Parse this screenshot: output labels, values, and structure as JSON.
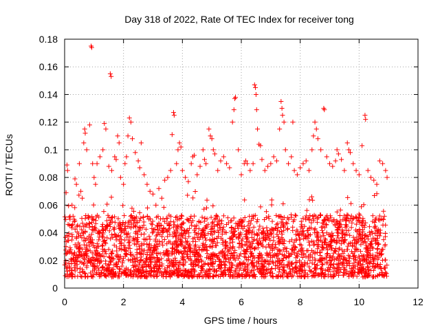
{
  "chart_data": {
    "type": "scatter",
    "title": "Day 318 of 2022, Rate Of TEC Index for receiver tong",
    "xlabel": "GPS time / hours",
    "ylabel": "ROTI / TECUs",
    "xlim": [
      0,
      12
    ],
    "ylim": [
      0,
      0.18
    ],
    "xticks": [
      0,
      2,
      4,
      6,
      8,
      10,
      12
    ],
    "xtick_labels": [
      "0",
      "2",
      "4",
      "6",
      "8",
      "10",
      "12"
    ],
    "yticks": [
      0,
      0.02,
      0.04,
      0.06,
      0.08,
      0.1,
      0.12,
      0.14,
      0.16,
      0.18
    ],
    "ytick_labels": [
      "0",
      "0.02",
      "0.04",
      "0.06",
      "0.08",
      "0.1",
      "0.12",
      "0.14",
      "0.16",
      "0.18"
    ],
    "grid": true,
    "marker": "+",
    "marker_color": "#ff0000",
    "series": [
      {
        "name": "ROTI",
        "points": [
          [
            0.05,
            0.069
          ],
          [
            0.08,
            0.089
          ],
          [
            0.1,
            0.085
          ],
          [
            0.25,
            0.06
          ],
          [
            0.35,
            0.079
          ],
          [
            0.4,
            0.075
          ],
          [
            0.5,
            0.09
          ],
          [
            0.55,
            0.07
          ],
          [
            0.6,
            0.065
          ],
          [
            0.65,
            0.105
          ],
          [
            0.68,
            0.115
          ],
          [
            0.7,
            0.112
          ],
          [
            0.75,
            0.1
          ],
          [
            0.85,
            0.118
          ],
          [
            0.9,
            0.175
          ],
          [
            0.92,
            0.174
          ],
          [
            0.95,
            0.09
          ],
          [
            1.0,
            0.08
          ],
          [
            1.05,
            0.075
          ],
          [
            1.1,
            0.09
          ],
          [
            1.2,
            0.095
          ],
          [
            1.3,
            0.1
          ],
          [
            1.35,
            0.119
          ],
          [
            1.4,
            0.115
          ],
          [
            1.5,
            0.088
          ],
          [
            1.55,
            0.155
          ],
          [
            1.58,
            0.153
          ],
          [
            1.6,
            0.085
          ],
          [
            1.7,
            0.095
          ],
          [
            1.75,
            0.093
          ],
          [
            1.8,
            0.11
          ],
          [
            1.85,
            0.105
          ],
          [
            1.9,
            0.08
          ],
          [
            2.0,
            0.075
          ],
          [
            2.05,
            0.09
          ],
          [
            2.1,
            0.095
          ],
          [
            2.15,
            0.11
          ],
          [
            2.2,
            0.123
          ],
          [
            2.25,
            0.12
          ],
          [
            2.3,
            0.108
          ],
          [
            2.4,
            0.098
          ],
          [
            2.5,
            0.092
          ],
          [
            2.55,
            0.087
          ],
          [
            2.6,
            0.105
          ],
          [
            2.7,
            0.082
          ],
          [
            2.8,
            0.075
          ],
          [
            2.9,
            0.07
          ],
          [
            3.0,
            0.068
          ],
          [
            3.1,
            0.06
          ],
          [
            3.2,
            0.072
          ],
          [
            3.3,
            0.065
          ],
          [
            3.4,
            0.078
          ],
          [
            3.5,
            0.08
          ],
          [
            3.6,
            0.085
          ],
          [
            3.65,
            0.111
          ],
          [
            3.7,
            0.127
          ],
          [
            3.72,
            0.125
          ],
          [
            3.8,
            0.09
          ],
          [
            3.85,
            0.1
          ],
          [
            3.9,
            0.105
          ],
          [
            3.95,
            0.102
          ],
          [
            4.0,
            0.085
          ],
          [
            4.1,
            0.08
          ],
          [
            4.2,
            0.077
          ],
          [
            4.3,
            0.09
          ],
          [
            4.35,
            0.095
          ],
          [
            4.4,
            0.096
          ],
          [
            4.5,
            0.082
          ],
          [
            4.6,
            0.088
          ],
          [
            4.7,
            0.1
          ],
          [
            4.75,
            0.093
          ],
          [
            4.8,
            0.09
          ],
          [
            4.9,
            0.115
          ],
          [
            4.95,
            0.11
          ],
          [
            5.0,
            0.108
          ],
          [
            5.05,
            0.1
          ],
          [
            5.1,
            0.097
          ],
          [
            5.2,
            0.085
          ],
          [
            5.3,
            0.092
          ],
          [
            5.4,
            0.095
          ],
          [
            5.5,
            0.09
          ],
          [
            5.6,
            0.087
          ],
          [
            5.7,
            0.12
          ],
          [
            5.75,
            0.129
          ],
          [
            5.78,
            0.137
          ],
          [
            5.8,
            0.138
          ],
          [
            5.9,
            0.1
          ],
          [
            6.0,
            0.082
          ],
          [
            6.1,
            0.09
          ],
          [
            6.15,
            0.092
          ],
          [
            6.2,
            0.09
          ],
          [
            6.3,
            0.085
          ],
          [
            6.4,
            0.09
          ],
          [
            6.45,
            0.147
          ],
          [
            6.48,
            0.145
          ],
          [
            6.5,
            0.14
          ],
          [
            6.52,
            0.129
          ],
          [
            6.55,
            0.115
          ],
          [
            6.6,
            0.104
          ],
          [
            6.65,
            0.103
          ],
          [
            6.7,
            0.093
          ],
          [
            6.8,
            0.085
          ],
          [
            6.9,
            0.088
          ],
          [
            7.0,
            0.09
          ],
          [
            7.1,
            0.095
          ],
          [
            7.2,
            0.092
          ],
          [
            7.3,
            0.115
          ],
          [
            7.35,
            0.135
          ],
          [
            7.38,
            0.13
          ],
          [
            7.4,
            0.125
          ],
          [
            7.45,
            0.12
          ],
          [
            7.5,
            0.1
          ],
          [
            7.6,
            0.09
          ],
          [
            7.7,
            0.095
          ],
          [
            7.75,
            0.12
          ],
          [
            7.8,
            0.085
          ],
          [
            7.9,
            0.082
          ],
          [
            8.0,
            0.087
          ],
          [
            8.1,
            0.09
          ],
          [
            8.2,
            0.092
          ],
          [
            8.3,
            0.085
          ],
          [
            8.4,
            0.1
          ],
          [
            8.45,
            0.11
          ],
          [
            8.5,
            0.12
          ],
          [
            8.55,
            0.115
          ],
          [
            8.6,
            0.108
          ],
          [
            8.7,
            0.1
          ],
          [
            8.8,
            0.13
          ],
          [
            8.82,
            0.129
          ],
          [
            8.9,
            0.095
          ],
          [
            9.0,
            0.09
          ],
          [
            9.1,
            0.088
          ],
          [
            9.2,
            0.092
          ],
          [
            9.25,
            0.1
          ],
          [
            9.3,
            0.097
          ],
          [
            9.4,
            0.093
          ],
          [
            9.5,
            0.085
          ],
          [
            9.6,
            0.105
          ],
          [
            9.65,
            0.1
          ],
          [
            9.7,
            0.098
          ],
          [
            9.8,
            0.09
          ],
          [
            9.9,
            0.085
          ],
          [
            10.0,
            0.082
          ],
          [
            10.1,
            0.103
          ],
          [
            10.2,
            0.125
          ],
          [
            10.22,
            0.122
          ],
          [
            10.3,
            0.085
          ],
          [
            10.4,
            0.08
          ],
          [
            10.5,
            0.078
          ],
          [
            10.6,
            0.075
          ],
          [
            10.7,
            0.092
          ],
          [
            10.8,
            0.09
          ],
          [
            10.9,
            0.085
          ],
          [
            10.95,
            0.08
          ]
        ]
      }
    ]
  }
}
